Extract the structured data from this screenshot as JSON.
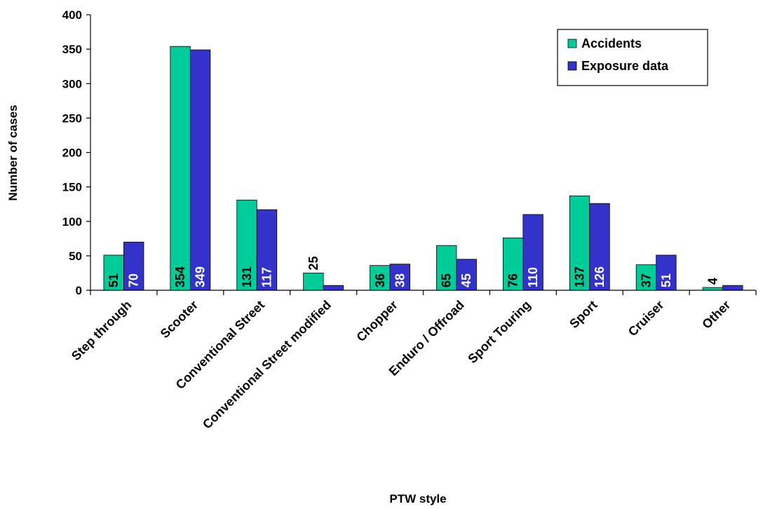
{
  "chart_data": {
    "type": "bar",
    "title": "",
    "xlabel": "PTW style",
    "ylabel": "Number of cases",
    "ylim": [
      0,
      400
    ],
    "yticks": [
      0,
      50,
      100,
      150,
      200,
      250,
      300,
      350,
      400
    ],
    "grid": false,
    "legend_position": "top-right",
    "categories": [
      "Step through",
      "Scooter",
      "Conventional Street",
      "Conventional Street modified",
      "Chopper",
      "Enduro / Offroad",
      "Sport Touring",
      "Sport",
      "Cruiser",
      "Other"
    ],
    "series": [
      {
        "name": "Accidents",
        "color": "#00CC99",
        "values": [
          51,
          354,
          131,
          25,
          36,
          65,
          76,
          137,
          37,
          4
        ],
        "labels": [
          "51",
          "354",
          "131",
          "25",
          "36",
          "65",
          "76",
          "137",
          "37",
          "4"
        ]
      },
      {
        "name": "Exposure data",
        "color": "#3333CC",
        "values": [
          70,
          349,
          117,
          7,
          38,
          45,
          110,
          126,
          51,
          7
        ],
        "labels": [
          "70",
          "349",
          "117",
          "",
          "38",
          "45",
          "110",
          "126",
          "51",
          ""
        ]
      }
    ]
  }
}
